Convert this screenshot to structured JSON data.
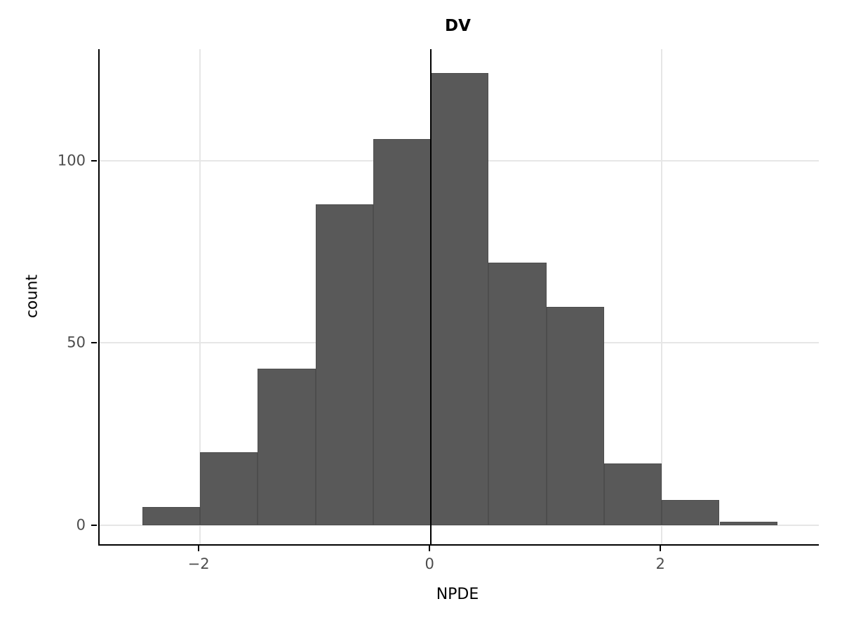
{
  "chart_data": {
    "type": "bar",
    "subtype": "histogram",
    "title": "DV",
    "xlabel": "NPDE",
    "ylabel": "count",
    "bin_width": 0.5,
    "bars": [
      {
        "x0": -2.5,
        "x1": -2.0,
        "count": 5
      },
      {
        "x0": -2.0,
        "x1": -1.5,
        "count": 20
      },
      {
        "x0": -1.5,
        "x1": -1.0,
        "count": 43
      },
      {
        "x0": -1.0,
        "x1": -0.5,
        "count": 88
      },
      {
        "x0": -0.5,
        "x1": 0.0,
        "count": 106
      },
      {
        "x0": 0.0,
        "x1": 0.5,
        "count": 124
      },
      {
        "x0": 0.5,
        "x1": 1.0,
        "count": 72
      },
      {
        "x0": 1.0,
        "x1": 1.5,
        "count": 60
      },
      {
        "x0": 1.5,
        "x1": 2.0,
        "count": 17
      },
      {
        "x0": 2.0,
        "x1": 2.5,
        "count": 7
      },
      {
        "x0": 2.5,
        "x1": 3.0,
        "count": 1
      }
    ],
    "x_ticks": [
      {
        "value": -2,
        "label": "−2"
      },
      {
        "value": 0,
        "label": "0"
      },
      {
        "value": 2,
        "label": "2"
      }
    ],
    "y_ticks": [
      {
        "value": 0,
        "label": "0"
      },
      {
        "value": 50,
        "label": "50"
      },
      {
        "value": 100,
        "label": "100"
      }
    ],
    "x_domain": [
      -2.87,
      3.36
    ],
    "y_domain": [
      -5.2,
      130.6
    ],
    "reference_line_x": 0,
    "grid": "on",
    "legend": "none",
    "colors": {
      "bar_fill": "#595959",
      "bar_border": "#4d4d4d",
      "grid": "#e6e6e6",
      "axis": "#000000",
      "ref_line": "#000000",
      "tick_label": "#4d4d4d",
      "background": "#ffffff"
    }
  }
}
